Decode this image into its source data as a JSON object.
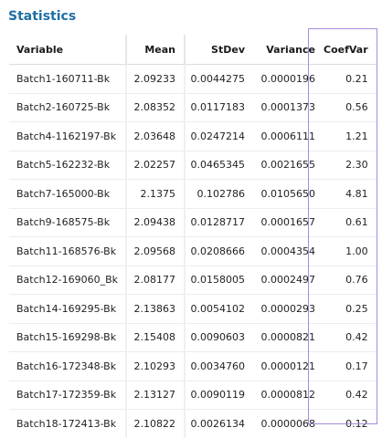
{
  "title": "Statistics",
  "columns": {
    "variable": "Variable",
    "mean": "Mean",
    "stdev": "StDev",
    "variance": "Variance",
    "coefvar": "CoefVar"
  },
  "highlight_color": "#a78bdc",
  "title_color": "#1f6ea6",
  "rows": [
    {
      "variable": "Batch1-160711-Bk",
      "mean": "2.09233",
      "stdev": "0.0044275",
      "variance": "0.0000196",
      "coefvar": "0.21"
    },
    {
      "variable": "Batch2-160725-Bk",
      "mean": "2.08352",
      "stdev": "0.0117183",
      "variance": "0.0001373",
      "coefvar": "0.56"
    },
    {
      "variable": "Batch4-1162197-Bk",
      "mean": "2.03648",
      "stdev": "0.0247214",
      "variance": "0.0006111",
      "coefvar": "1.21"
    },
    {
      "variable": "Batch5-162232-Bk",
      "mean": "2.02257",
      "stdev": "0.0465345",
      "variance": "0.0021655",
      "coefvar": "2.30"
    },
    {
      "variable": "Batch7-165000-Bk",
      "mean": "2.1375",
      "stdev": "0.102786",
      "variance": "0.0105650",
      "coefvar": "4.81"
    },
    {
      "variable": "Batch9-168575-Bk",
      "mean": "2.09438",
      "stdev": "0.0128717",
      "variance": "0.0001657",
      "coefvar": "0.61"
    },
    {
      "variable": "Batch11-168576-Bk",
      "mean": "2.09568",
      "stdev": "0.0208666",
      "variance": "0.0004354",
      "coefvar": "1.00"
    },
    {
      "variable": "Batch12-169060_Bk",
      "mean": "2.08177",
      "stdev": "0.0158005",
      "variance": "0.0002497",
      "coefvar": "0.76"
    },
    {
      "variable": "Batch14-169295-Bk",
      "mean": "2.13863",
      "stdev": "0.0054102",
      "variance": "0.0000293",
      "coefvar": "0.25"
    },
    {
      "variable": "Batch15-169298-Bk",
      "mean": "2.15408",
      "stdev": "0.0090603",
      "variance": "0.0000821",
      "coefvar": "0.42"
    },
    {
      "variable": "Batch16-172348-Bk",
      "mean": "2.10293",
      "stdev": "0.0034760",
      "variance": "0.0000121",
      "coefvar": "0.17"
    },
    {
      "variable": "Batch17-172359-Bk",
      "mean": "2.13127",
      "stdev": "0.0090119",
      "variance": "0.0000812",
      "coefvar": "0.42"
    },
    {
      "variable": "Batch18-172413-Bk",
      "mean": "2.10822",
      "stdev": "0.0026134",
      "variance": "0.0000068",
      "coefvar": "0.12"
    }
  ]
}
